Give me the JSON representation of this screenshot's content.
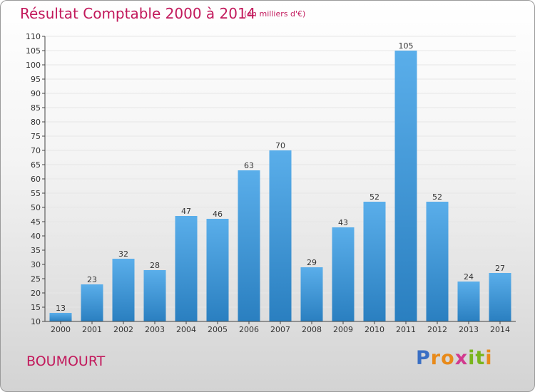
{
  "header": {
    "title": "Résultat Comptable 2000 à 2014",
    "subtitle": "(en milliers d'€)"
  },
  "footer": {
    "commune": "BOUMOURT",
    "logo": {
      "p": "P",
      "r": "r",
      "o": "o",
      "x": "x",
      "i1": "i",
      "t": "t",
      "i2": "i"
    }
  },
  "colors": {
    "title": "#c2185b",
    "bar_top": "#5aaeea",
    "bar_bottom": "#2a7fc0",
    "axis": "#444444",
    "grid": "#e6e6e6"
  },
  "chart_data": {
    "type": "bar",
    "title": "Résultat Comptable 2000 à 2014",
    "xlabel": "",
    "ylabel": "",
    "categories": [
      "2000",
      "2001",
      "2002",
      "2003",
      "2004",
      "2005",
      "2006",
      "2007",
      "2008",
      "2009",
      "2010",
      "2011",
      "2012",
      "2013",
      "2014"
    ],
    "values": [
      13,
      23,
      32,
      28,
      47,
      46,
      63,
      70,
      29,
      43,
      52,
      105,
      52,
      24,
      27
    ],
    "ylim": [
      10,
      110
    ],
    "yticks": [
      10,
      15,
      20,
      25,
      30,
      35,
      40,
      45,
      50,
      55,
      60,
      65,
      70,
      75,
      80,
      85,
      90,
      95,
      100,
      105,
      110
    ],
    "grid": true
  }
}
